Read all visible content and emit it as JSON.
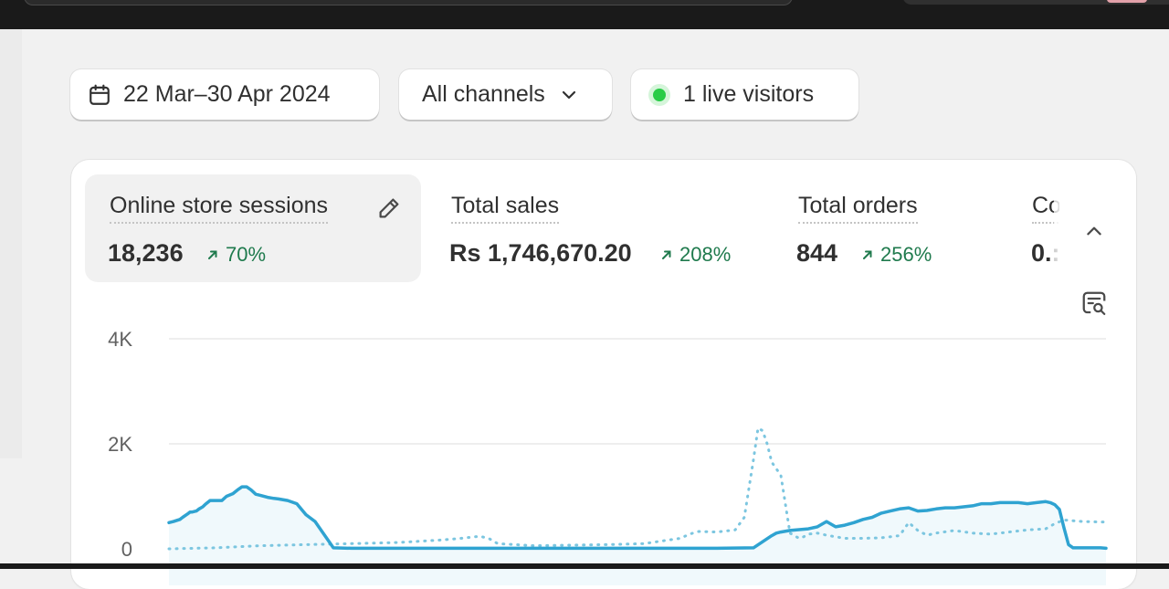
{
  "filters": {
    "date_range": "22 Mar–30 Apr 2024",
    "channels": "All channels",
    "live_visitors": "1 live visitors"
  },
  "metrics": [
    {
      "label": "Online store sessions",
      "value": "18,236",
      "change": "70%"
    },
    {
      "label": "Total sales",
      "value": "Rs 1,746,670.20",
      "change": "208%"
    },
    {
      "label": "Total orders",
      "value": "844",
      "change": "256%"
    },
    {
      "label": "Co",
      "value": "0.:"
    }
  ],
  "colors": {
    "accent": "#2fa3d1",
    "positive": "#1f7a4d",
    "live": "#29cc47"
  },
  "icons": [
    "calendar-icon",
    "chevron-down-icon",
    "live-dot-icon",
    "pencil-icon",
    "trend-up-icon",
    "chevron-up-icon",
    "analyze-icon"
  ],
  "chart_data": {
    "type": "line",
    "y_ticks": [
      "4K",
      "2K",
      "0"
    ],
    "ylim": [
      0,
      4000
    ],
    "grid": true,
    "series": [
      {
        "style": "solid",
        "x": [
          0,
          5,
          12,
          15,
          20,
          23,
          25,
          30,
          33,
          37,
          40,
          45,
          50,
          58,
          63,
          70,
          75,
          80,
          85,
          90,
          95,
          100,
          108,
          115,
          120,
          130,
          140,
          150,
          160,
          180,
          200,
          220,
          240,
          260,
          290,
          310,
          360,
          400,
          450,
          500,
          550,
          600,
          640,
          660,
          665,
          670,
          680,
          700,
          710,
          720,
          730,
          740,
          750,
          760,
          770,
          780,
          790,
          800,
          810,
          820,
          830,
          840,
          850,
          860,
          870,
          880,
          890,
          900,
          910,
          920,
          930,
          940,
          950,
          960,
          965,
          970,
          975,
          980,
          985,
          990,
          1000,
          1010,
          1020,
          1026
        ],
        "y": [
          500,
          520,
          560,
          600,
          660,
          700,
          700,
          720,
          760,
          800,
          850,
          920,
          920,
          920,
          1000,
          1050,
          1120,
          1180,
          1180,
          1120,
          1040,
          1020,
          980,
          960,
          950,
          920,
          860,
          650,
          520,
          20,
          10,
          10,
          10,
          10,
          10,
          10,
          10,
          10,
          10,
          10,
          10,
          10,
          20,
          250,
          300,
          320,
          350,
          380,
          420,
          520,
          420,
          450,
          500,
          560,
          600,
          680,
          720,
          760,
          780,
          720,
          730,
          760,
          780,
          780,
          800,
          820,
          860,
          860,
          880,
          880,
          880,
          860,
          880,
          900,
          880,
          840,
          750,
          400,
          80,
          20,
          20,
          20,
          20,
          10
        ]
      },
      {
        "style": "dotted",
        "x": [
          0,
          50,
          100,
          150,
          200,
          250,
          280,
          300,
          320,
          340,
          350,
          360,
          400,
          440,
          480,
          520,
          560,
          570,
          580,
          600,
          620,
          630,
          640,
          645,
          650,
          655,
          660,
          670,
          680,
          690,
          695,
          700,
          710,
          720,
          740,
          760,
          780,
          800,
          810,
          820,
          830,
          840,
          860,
          880,
          900,
          920,
          940,
          960,
          970,
          980,
          1000,
          1026
        ],
        "y": [
          0,
          20,
          60,
          80,
          100,
          120,
          150,
          170,
          200,
          240,
          200,
          100,
          60,
          70,
          80,
          100,
          200,
          280,
          330,
          320,
          360,
          600,
          1700,
          2300,
          2250,
          2000,
          1650,
          1400,
          300,
          200,
          230,
          280,
          300,
          260,
          200,
          200,
          210,
          250,
          500,
          350,
          260,
          300,
          350,
          300,
          280,
          320,
          360,
          380,
          480,
          550,
          520,
          510
        ]
      }
    ]
  }
}
